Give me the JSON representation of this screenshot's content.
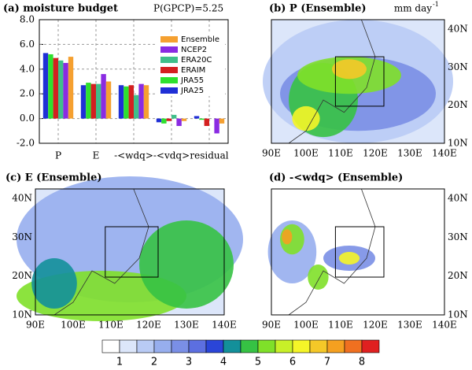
{
  "chart_data": {
    "type": "bar",
    "title": "(a) moisture budget",
    "annotation": "P(GPCP)=5.25",
    "categories": [
      "P",
      "E",
      "-<wdq>",
      "-<vdq>",
      "residual"
    ],
    "series": [
      {
        "name": "JRA25",
        "color": "#1f2fd6",
        "values": [
          5.3,
          2.7,
          2.7,
          -0.3,
          0.2
        ]
      },
      {
        "name": "JRA55",
        "color": "#2ee02e",
        "values": [
          5.2,
          2.9,
          2.6,
          -0.4,
          -0.1
        ]
      },
      {
        "name": "ERAIM",
        "color": "#d42020",
        "values": [
          4.9,
          2.8,
          2.7,
          -0.2,
          -0.6
        ]
      },
      {
        "name": "ERA20C",
        "color": "#3fbf8a",
        "values": [
          4.7,
          2.8,
          1.9,
          0.3,
          0.0
        ]
      },
      {
        "name": "NCEP2",
        "color": "#8a2be2",
        "values": [
          4.5,
          3.6,
          2.8,
          -0.6,
          -1.2
        ]
      },
      {
        "name": "Ensemble",
        "color": "#f5a030",
        "values": [
          5.0,
          3.0,
          2.7,
          -0.2,
          -0.4
        ]
      }
    ],
    "ylim": [
      -2,
      8
    ],
    "yticks": [
      {
        "value": -2,
        "label": "-2.0"
      },
      {
        "value": 0,
        "label": "0.0"
      },
      {
        "value": 2,
        "label": "2.0"
      },
      {
        "value": 4,
        "label": "4.0"
      },
      {
        "value": 6,
        "label": "6.0"
      },
      {
        "value": 8,
        "label": "8.0"
      }
    ],
    "grid": true
  },
  "maps": [
    {
      "title": "(b) P (Ensemble)",
      "units": "mm day",
      "units_sup": "-1",
      "xticks": [
        "90E",
        "100E",
        "110E",
        "120E",
        "130E",
        "140E"
      ],
      "yticks": [
        "10N",
        "20N",
        "30N",
        "40N"
      ]
    },
    {
      "title": "(c) E (Ensemble)",
      "xticks": [
        "90E",
        "100E",
        "110E",
        "120E",
        "130E",
        "140E"
      ],
      "yticks": [
        "10N",
        "20N",
        "30N",
        "40N"
      ]
    },
    {
      "title": "(d) -<wdq> (Ensemble)",
      "xticks": [
        "90E",
        "100E",
        "110E",
        "120E",
        "130E",
        "140E"
      ],
      "yticks": [
        "10N",
        "20N",
        "30N",
        "40N"
      ]
    }
  ],
  "colorbar": {
    "labels": [
      1,
      2,
      3,
      4,
      5,
      6,
      7,
      8
    ],
    "colors": [
      "#ffffff",
      "#dce6fa",
      "#b9cbf5",
      "#97aeee",
      "#7a8fe6",
      "#5c6fe0",
      "#2a45d8",
      "#13909a",
      "#36c244",
      "#7fe029",
      "#c8f028",
      "#f5f528",
      "#f5c828",
      "#f5a020",
      "#f07020",
      "#e02020"
    ]
  }
}
